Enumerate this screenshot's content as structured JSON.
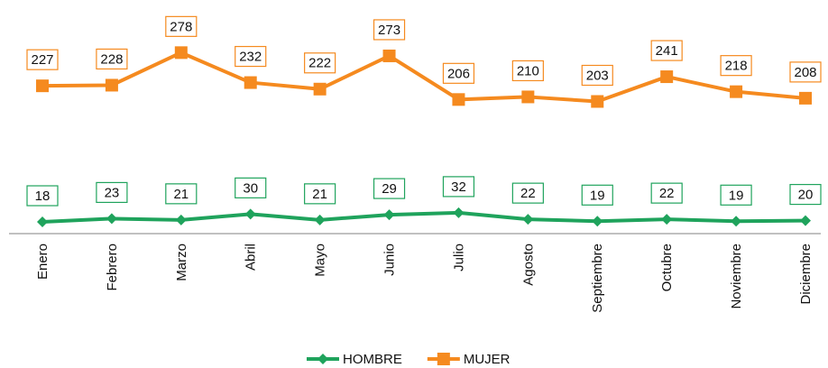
{
  "chart_data": {
    "type": "line",
    "categories": [
      "Enero",
      "Febrero",
      "Marzo",
      "Abril",
      "Mayo",
      "Junio",
      "Julio",
      "Agosto",
      "Septiembre",
      "Octubre",
      "Noviembre",
      "Diciembre"
    ],
    "series": [
      {
        "name": "HOMBRE",
        "color": "#1fa35c",
        "marker": "diamond",
        "values": [
          18,
          23,
          21,
          30,
          21,
          29,
          32,
          22,
          19,
          22,
          19,
          20
        ]
      },
      {
        "name": "MUJER",
        "color": "#f58a1f",
        "marker": "square",
        "values": [
          227,
          228,
          278,
          232,
          222,
          273,
          206,
          210,
          203,
          241,
          218,
          208
        ]
      }
    ],
    "ylim": [
      0,
      345
    ],
    "legend": "bottom"
  }
}
